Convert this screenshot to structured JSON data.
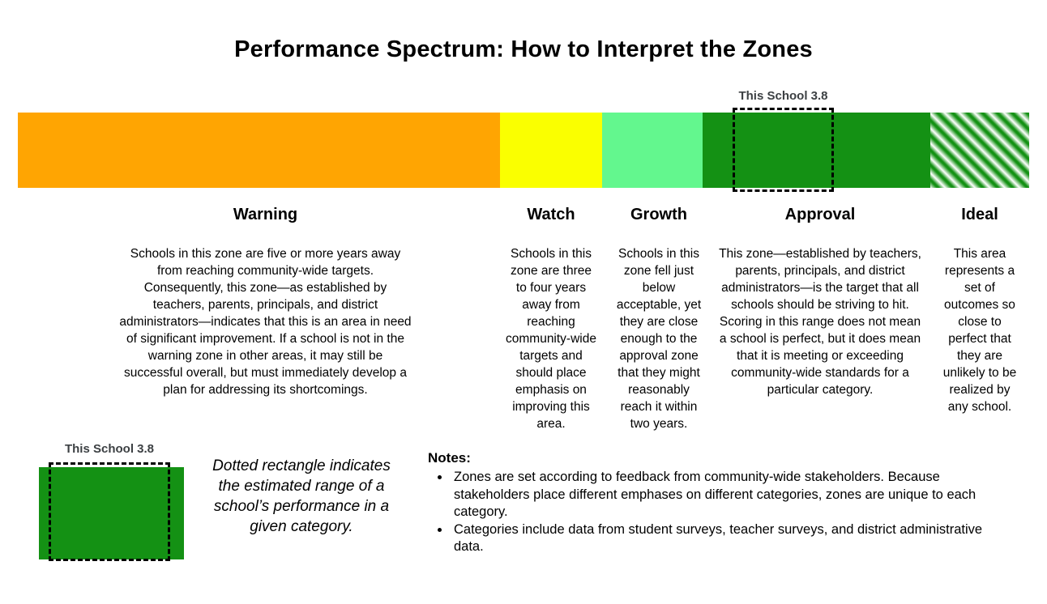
{
  "title": "Performance Spectrum: How to Interpret the Zones",
  "marker": {
    "label": "This School 3.8",
    "value": "3.8",
    "label_color": "#3c4043",
    "border_style": "dashed-black"
  },
  "zones": [
    {
      "name": "Warning",
      "color": "#FFA502",
      "description": "Schools in this zone are five or more years away from reaching community-wide targets. Consequently, this zone—as established by teachers, parents, principals, and district administrators—indicates that this is an area in need of significant improvement. If a school is not in the warning zone in other areas, it may still be successful overall, but must immediately develop a plan for addressing its shortcomings."
    },
    {
      "name": "Watch",
      "color": "#FAFF00",
      "description": "Schools in this zone are three to four years away from reaching community-wide targets and should place emphasis on improving this area."
    },
    {
      "name": "Growth",
      "color": "#63F78E",
      "description": "Schools in this zone fell just below acceptable, yet they are close enough to the approval zone that they might reasonably reach it within two years."
    },
    {
      "name": "Approval",
      "color": "#149114",
      "description": "This zone—established by teachers, parents, principals, and district administrators—is the target that all schools should be striving to hit. Scoring in this range does not mean a school is perfect, but it does mean that it is meeting or exceeding community-wide standards for a particular category."
    },
    {
      "name": "Ideal",
      "color": "#149114",
      "pattern": "diagonal-green-white-stripes",
      "description": "This area represents a set of outcomes so close to perfect that they are unlikely to be realized by any school."
    }
  ],
  "legend": {
    "marker_label": "This School 3.8",
    "caption": "Dotted rectangle indicates the estimated range of a school’s performance in a given category."
  },
  "notes": {
    "heading": "Notes:",
    "items": [
      "Zones are set according to feedback from community-wide stakeholders. Because stakeholders place different emphases on different categories, zones are unique to each category.",
      "Categories include data from student surveys, teacher surveys, and district administrative data."
    ]
  }
}
